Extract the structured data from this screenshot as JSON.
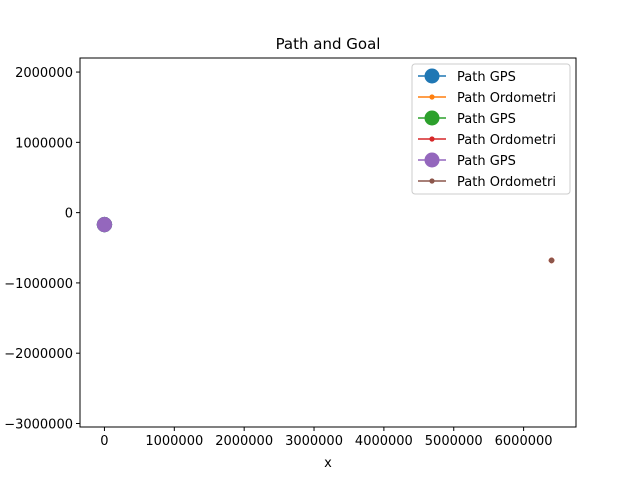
{
  "chart_data": {
    "type": "line",
    "title": "Path and Goal",
    "xlabel": "x",
    "ylabel": "",
    "xlim": [
      -350000,
      6750000
    ],
    "ylim": [
      -3050000,
      2200000
    ],
    "x_ticks": [
      0,
      1000000,
      2000000,
      3000000,
      4000000,
      5000000,
      6000000
    ],
    "x_tick_labels": [
      "0",
      "1000000",
      "2000000",
      "3000000",
      "4000000",
      "5000000",
      "6000000"
    ],
    "y_ticks": [
      2000000,
      1000000,
      0,
      -1000000,
      -2000000,
      -3000000
    ],
    "y_tick_labels": [
      "2000000",
      "1000000",
      "0",
      "−1000000",
      "−2000000",
      "−3000000"
    ],
    "grid": false,
    "legend_position": "top-right",
    "series": [
      {
        "name": "Path GPS",
        "color": "#1f77b4",
        "marker": "large-circle",
        "x": [
          0
        ],
        "y": [
          -170000
        ]
      },
      {
        "name": "Path Ordometri",
        "color": "#ff7f0e",
        "marker": "small-circle",
        "x": [
          6400000
        ],
        "y": [
          -680000
        ]
      },
      {
        "name": "Path GPS",
        "color": "#2ca02c",
        "marker": "large-circle",
        "x": [
          0
        ],
        "y": [
          -170000
        ]
      },
      {
        "name": "Path Ordometri",
        "color": "#d62728",
        "marker": "small-circle",
        "x": [
          6400000
        ],
        "y": [
          -680000
        ]
      },
      {
        "name": "Path GPS",
        "color": "#9467bd",
        "marker": "large-circle",
        "x": [
          0
        ],
        "y": [
          -170000
        ]
      },
      {
        "name": "Path Ordometri",
        "color": "#8c564b",
        "marker": "small-circle",
        "x": [
          6400000
        ],
        "y": [
          -680000
        ]
      }
    ]
  }
}
